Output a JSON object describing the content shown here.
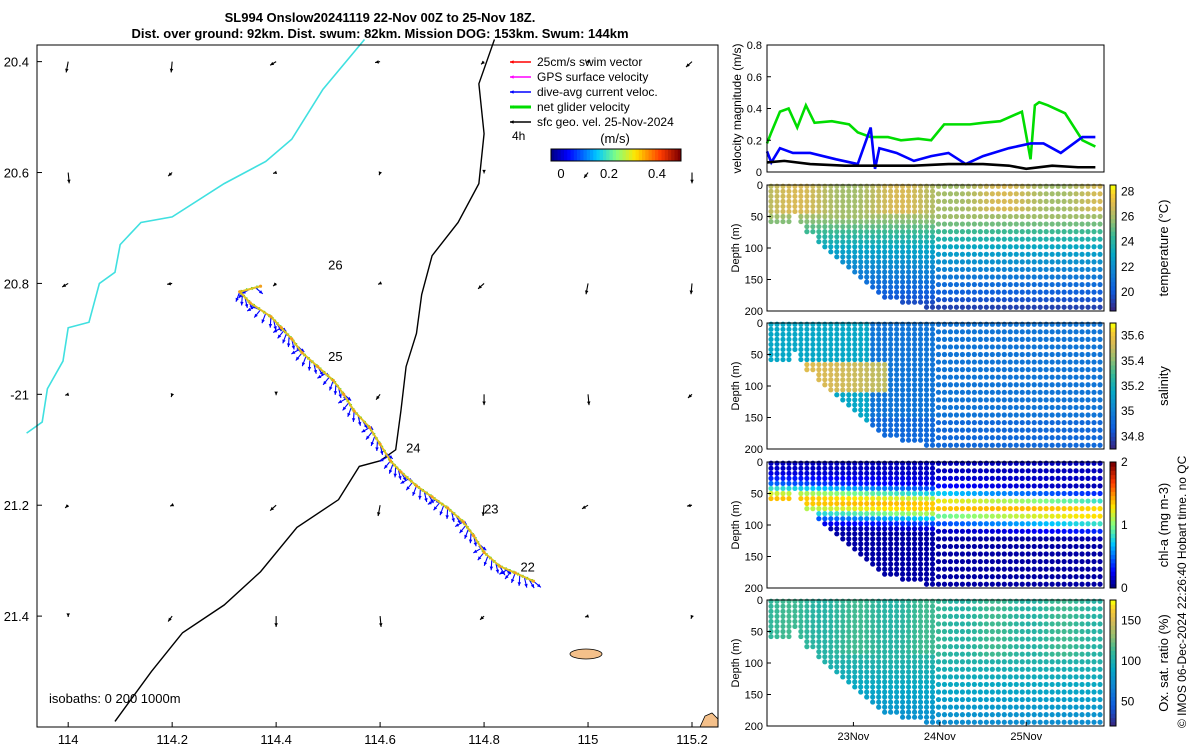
{
  "header": {
    "line1": "SL994 Onslow20241119 22-Nov 00Z to 25-Nov 18Z.",
    "line2": "Dist. over ground: 92km. Dist. swum: 82km. Mission DOG: 153km. Swum: 144km"
  },
  "colors": {
    "coast": "#40e0e0",
    "isobath": "#000000",
    "swim": "#ff0000",
    "gps": "#ff00ff",
    "current": "#0000ff",
    "net": "#00dd00",
    "geo": "#000000",
    "land": "#f4c08a"
  },
  "chart_data": [
    {
      "type": "scatter",
      "name": "map",
      "xlim": [
        113.94,
        115.25
      ],
      "ylim": [
        -21.6,
        -20.37
      ],
      "x_ticks": [
        114,
        114.2,
        114.4,
        114.6,
        114.8,
        115,
        115.2
      ],
      "x_tick_labels": [
        "114",
        "114.2",
        "114.4",
        "114.6",
        "114.8",
        "115",
        "115.2"
      ],
      "y_ticks": [
        -20.4,
        -20.6,
        -20.8,
        -21.0,
        -21.2,
        -21.4
      ],
      "y_tick_labels": [
        "20.4",
        "20.6",
        "20.8",
        "-21",
        "21.2",
        "21.4"
      ],
      "legend": [
        "25cm/s swim vector",
        "GPS surface velocity",
        "dive-avg current veloc.",
        "net glider velocity",
        "sfc geo. vel. 25-Nov-2024"
      ],
      "legend_extra": "4h",
      "colorbar": {
        "label": "(m/s)",
        "ticks": [
          0,
          0.2,
          0.4
        ],
        "tick_labels": [
          "0",
          "0.2",
          "0.4"
        ],
        "range": [
          0,
          0.5
        ]
      },
      "isobath_label": "isobaths: 0   200  1000m",
      "day_labels": [
        {
          "text": "26",
          "lon": 114.5,
          "lat": -20.775
        },
        {
          "text": "25",
          "lon": 114.5,
          "lat": -20.94
        },
        {
          "text": "24",
          "lon": 114.65,
          "lat": -21.105
        },
        {
          "text": "23",
          "lon": 114.8,
          "lat": -21.215
        },
        {
          "text": "22",
          "lon": 114.87,
          "lat": -21.32
        }
      ],
      "track": [
        [
          114.895,
          -21.337
        ],
        [
          114.86,
          -21.322
        ],
        [
          114.83,
          -21.31
        ],
        [
          114.8,
          -21.285
        ],
        [
          114.78,
          -21.255
        ],
        [
          114.76,
          -21.23
        ],
        [
          114.73,
          -21.205
        ],
        [
          114.7,
          -21.185
        ],
        [
          114.67,
          -21.165
        ],
        [
          114.64,
          -21.14
        ],
        [
          114.62,
          -21.12
        ],
        [
          114.6,
          -21.09
        ],
        [
          114.58,
          -21.06
        ],
        [
          114.55,
          -21.03
        ],
        [
          114.53,
          -21.0
        ],
        [
          114.51,
          -20.975
        ],
        [
          114.48,
          -20.95
        ],
        [
          114.45,
          -20.925
        ],
        [
          114.43,
          -20.9
        ],
        [
          114.41,
          -20.88
        ],
        [
          114.39,
          -20.86
        ],
        [
          114.35,
          -20.835
        ],
        [
          114.33,
          -20.815
        ],
        [
          114.37,
          -20.805
        ]
      ],
      "coast": [
        [
          114.57,
          -20.36
        ],
        [
          114.49,
          -20.45
        ],
        [
          114.43,
          -20.54
        ],
        [
          114.38,
          -20.58
        ],
        [
          114.3,
          -20.62
        ],
        [
          114.2,
          -20.68
        ],
        [
          114.14,
          -20.69
        ],
        [
          114.1,
          -20.73
        ],
        [
          114.09,
          -20.78
        ],
        [
          114.06,
          -20.8
        ],
        [
          114.04,
          -20.87
        ],
        [
          114.0,
          -20.88
        ],
        [
          113.99,
          -20.94
        ],
        [
          113.96,
          -20.99
        ],
        [
          113.95,
          -21.05
        ],
        [
          113.92,
          -21.07
        ]
      ],
      "isobath": [
        [
          114.82,
          -20.36
        ],
        [
          114.79,
          -20.44
        ],
        [
          114.8,
          -20.53
        ],
        [
          114.79,
          -20.62
        ],
        [
          114.75,
          -20.69
        ],
        [
          114.7,
          -20.75
        ],
        [
          114.68,
          -20.82
        ],
        [
          114.67,
          -20.89
        ],
        [
          114.65,
          -20.95
        ],
        [
          114.64,
          -21.03
        ],
        [
          114.63,
          -21.1
        ],
        [
          114.6,
          -21.12
        ],
        [
          114.56,
          -21.13
        ],
        [
          114.52,
          -21.19
        ],
        [
          114.44,
          -21.24
        ],
        [
          114.37,
          -21.32
        ],
        [
          114.3,
          -21.38
        ],
        [
          114.22,
          -21.43
        ],
        [
          114.16,
          -21.5
        ],
        [
          114.09,
          -21.59
        ]
      ],
      "geo_arrow_lats": [
        -20.4,
        -20.6,
        -20.8,
        -21.0,
        -21.2,
        -21.4
      ],
      "geo_arrow_lons": [
        114.0,
        114.2,
        114.4,
        114.6,
        114.8,
        115.0,
        115.2
      ]
    },
    {
      "type": "line",
      "name": "velocity",
      "ylabel": "velocity magnitude (m/s)",
      "ylim": [
        0,
        0.8
      ],
      "y_ticks": [
        0,
        0.2,
        0.4,
        0.6,
        0.8
      ],
      "y_tick_labels": [
        "0",
        "0.2",
        "0.4",
        "0.6",
        "0.8"
      ],
      "xlim": [
        22.0,
        25.9
      ],
      "series": [
        {
          "name": "net glider velocity",
          "x": [
            22.0,
            22.05,
            22.15,
            22.25,
            22.35,
            22.45,
            22.55,
            22.75,
            22.95,
            23.05,
            23.2,
            23.4,
            23.55,
            23.75,
            23.9,
            24.05,
            24.2,
            24.35,
            24.5,
            24.7,
            24.95,
            25.05,
            25.1,
            25.15,
            25.25,
            25.45,
            25.65,
            25.8
          ],
          "y": [
            0.18,
            0.25,
            0.38,
            0.4,
            0.28,
            0.42,
            0.31,
            0.32,
            0.3,
            0.25,
            0.22,
            0.22,
            0.2,
            0.21,
            0.2,
            0.3,
            0.3,
            0.3,
            0.31,
            0.32,
            0.38,
            0.08,
            0.42,
            0.44,
            0.42,
            0.37,
            0.2,
            0.16
          ]
        },
        {
          "name": "dive-avg current veloc.",
          "x": [
            22.0,
            22.05,
            22.15,
            22.3,
            22.5,
            22.8,
            23.05,
            23.2,
            23.25,
            23.3,
            23.5,
            23.7,
            23.9,
            24.1,
            24.3,
            24.5,
            24.8,
            25.05,
            25.2,
            25.4,
            25.65,
            25.8
          ],
          "y": [
            0.13,
            0.06,
            0.15,
            0.12,
            0.12,
            0.08,
            0.05,
            0.28,
            0.02,
            0.15,
            0.12,
            0.07,
            0.1,
            0.12,
            0.05,
            0.1,
            0.15,
            0.18,
            0.18,
            0.12,
            0.22,
            0.22
          ]
        },
        {
          "name": "sfc geo. vel.",
          "x": [
            22.0,
            22.2,
            22.5,
            22.9,
            23.3,
            23.7,
            24.1,
            24.5,
            24.8,
            25.0,
            25.3,
            25.6,
            25.8
          ],
          "y": [
            0.06,
            0.07,
            0.05,
            0.04,
            0.04,
            0.04,
            0.05,
            0.05,
            0.04,
            0.02,
            0.04,
            0.03,
            0.03
          ]
        }
      ]
    },
    {
      "type": "heatmap",
      "name": "temperature",
      "ylabel": "Depth (m)",
      "colorbar_label": "temperature (°C)",
      "color_range": [
        18.5,
        28.5
      ],
      "cb_ticks": [
        20,
        22,
        24,
        26,
        28
      ],
      "cb_tick_labels": [
        "20",
        "22",
        "24",
        "26",
        "28"
      ],
      "ylim": [
        0,
        200
      ],
      "y_ticks": [
        0,
        50,
        100,
        150,
        200
      ],
      "y_tick_labels": [
        "0",
        "50",
        "100",
        "150",
        "200"
      ]
    },
    {
      "type": "heatmap",
      "name": "salinity",
      "ylabel": "Depth (m)",
      "colorbar_label": "salinity",
      "color_range": [
        34.7,
        35.7
      ],
      "cb_ticks": [
        34.8,
        35,
        35.2,
        35.4,
        35.6
      ],
      "cb_tick_labels": [
        "34.8",
        "35",
        "35.2",
        "35.4",
        "35.6"
      ],
      "ylim": [
        0,
        200
      ],
      "y_ticks": [
        0,
        50,
        100,
        150,
        200
      ],
      "y_tick_labels": [
        "0",
        "50",
        "100",
        "150",
        "200"
      ]
    },
    {
      "type": "heatmap",
      "name": "chl-a",
      "ylabel": "Depth (m)",
      "colorbar_label": "chl-a (mg m-3)",
      "color_range": [
        0,
        2
      ],
      "cb_ticks": [
        0,
        1,
        2
      ],
      "cb_tick_labels": [
        "0",
        "1",
        "2"
      ],
      "ylim": [
        0,
        200
      ],
      "y_ticks": [
        0,
        50,
        100,
        150,
        200
      ],
      "y_tick_labels": [
        "0",
        "50",
        "100",
        "150",
        "200"
      ]
    },
    {
      "type": "heatmap",
      "name": "oxygen",
      "ylabel": "Depth (m)",
      "colorbar_label": "Ox. sat. ratio (%)",
      "color_range": [
        20,
        175
      ],
      "cb_ticks": [
        50,
        100,
        150
      ],
      "cb_tick_labels": [
        "50",
        "100",
        "150"
      ],
      "ylim": [
        0,
        200
      ],
      "y_ticks": [
        0,
        50,
        100,
        150,
        200
      ],
      "y_tick_labels": [
        "0",
        "50",
        "100",
        "150",
        "200"
      ],
      "x_ticks": [
        23,
        24,
        25
      ],
      "x_tick_labels": [
        "23Nov",
        "24Nov",
        "25Nov"
      ]
    }
  ],
  "footer": {
    "credit": "© IMOS 06-Dec-2024 22:26:40 Hobart time. no QC"
  }
}
